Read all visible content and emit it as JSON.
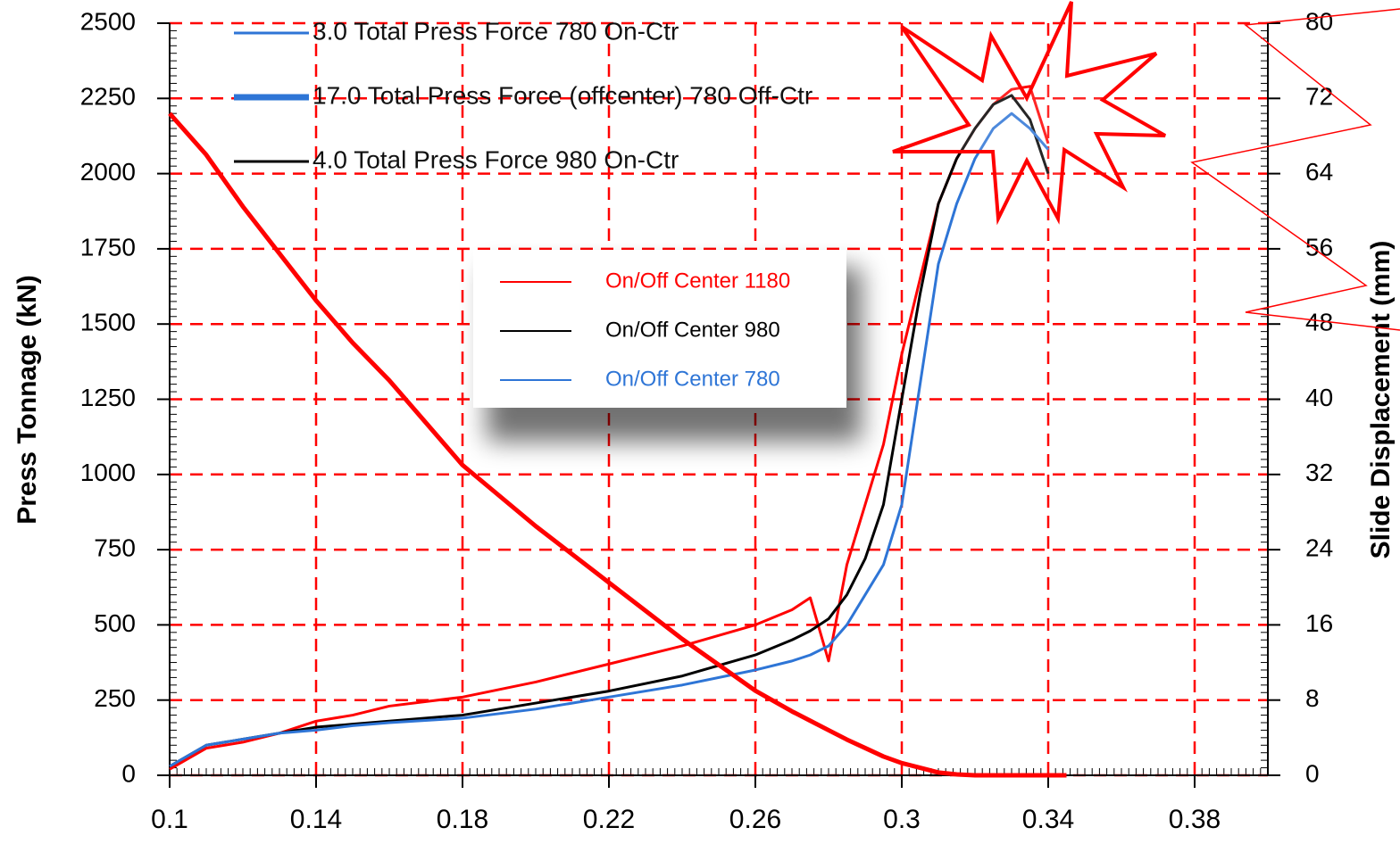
{
  "chart_data": {
    "type": "line",
    "y_label": "Press Tonnage (kN)",
    "y2_label": "Slide Displacement (mm)",
    "x": [
      0.1,
      0.11,
      0.12,
      0.13,
      0.14,
      0.15,
      0.16,
      0.18,
      0.2,
      0.22,
      0.24,
      0.26,
      0.27,
      0.275,
      0.28,
      0.285,
      0.29,
      0.295,
      0.3,
      0.305,
      0.31,
      0.315,
      0.32,
      0.325,
      0.33,
      0.335,
      0.34,
      0.345
    ],
    "series": [
      {
        "name": "On/Off Center 1180",
        "color": "#ff0000",
        "values": [
          20,
          90,
          110,
          140,
          180,
          200,
          230,
          260,
          310,
          370,
          430,
          500,
          550,
          590,
          380,
          700,
          900,
          1100,
          1400,
          1650,
          1900,
          2050,
          2150,
          2230,
          2280,
          2290,
          2100,
          null
        ]
      },
      {
        "name": "On/Off Center 980",
        "color": "#000000",
        "values": [
          30,
          100,
          120,
          140,
          160,
          170,
          180,
          200,
          240,
          280,
          330,
          400,
          450,
          480,
          520,
          600,
          720,
          900,
          1250,
          1600,
          1900,
          2050,
          2150,
          2230,
          2260,
          2180,
          2000,
          null
        ]
      },
      {
        "name": "On/Off Center 780",
        "color": "#2e75d6",
        "values": [
          30,
          100,
          120,
          140,
          150,
          165,
          175,
          190,
          220,
          260,
          300,
          350,
          380,
          400,
          430,
          500,
          600,
          700,
          900,
          1300,
          1700,
          1900,
          2050,
          2150,
          2200,
          2150,
          2080,
          null
        ]
      },
      {
        "color": "#ff0000",
        "axis": "y2",
        "values": [
          70.4,
          66,
          60.5,
          55.5,
          50.5,
          46,
          42,
          33,
          26.5,
          20.5,
          14.5,
          9,
          6.8,
          5.8,
          4.8,
          3.8,
          2.9,
          2,
          1.3,
          0.8,
          0.3,
          0.1,
          0,
          0,
          0,
          0,
          0,
          0
        ]
      }
    ],
    "legend_entries": [
      {
        "label": "3.0 Total Press Force 780 On-Ctr",
        "color": "#2e75d6"
      },
      {
        "label": "17.0 Total Press Force (offcenter) 780 Off-Ctr",
        "color": "#2e75d6"
      },
      {
        "label": "4.0 Total Press Force  980 On-Ctr",
        "color": "#000000"
      }
    ],
    "xlim": [
      0.1,
      0.4
    ],
    "xticks": [
      0.1,
      0.14,
      0.18,
      0.22,
      0.26,
      0.3,
      0.34,
      0.38
    ],
    "ylim": [
      0,
      2500
    ],
    "yticks": [
      0,
      250,
      500,
      750,
      1000,
      1250,
      1500,
      1750,
      2000,
      2250,
      2500
    ],
    "y2lim": [
      0,
      80
    ],
    "y2ticks": [
      0,
      8,
      16,
      24,
      32,
      40,
      48,
      56,
      64,
      72,
      80
    ],
    "grid": true,
    "grid_color": "#ff0000"
  }
}
